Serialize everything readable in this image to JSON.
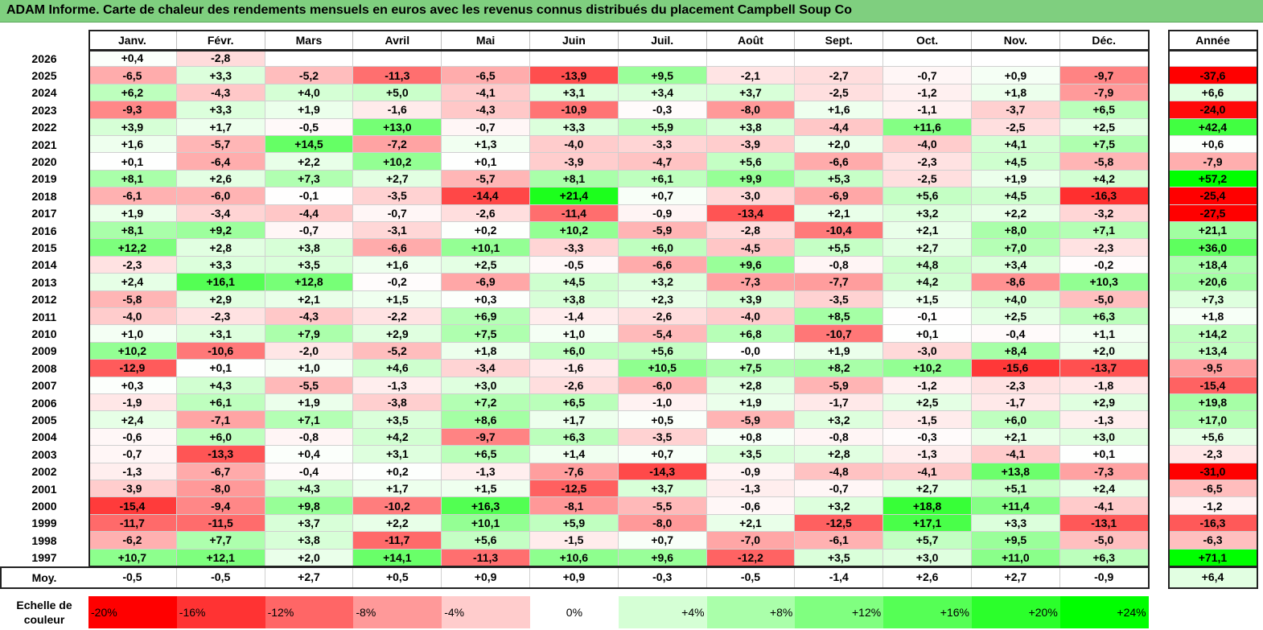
{
  "title": "ADAM Informe. Carte de chaleur des rendements mensuels en euros avec les revenus connus distribués du placement Campbell Soup Co",
  "chart_data": {
    "type": "heatmap",
    "title": "ADAM Informe. Carte de chaleur des rendements mensuels en euros avec les revenus connus distribués du placement Campbell Soup Co",
    "columns": [
      "Janv.",
      "Févr.",
      "Mars",
      "Avril",
      "Mai",
      "Juin",
      "Juil.",
      "Août",
      "Sept.",
      "Oct.",
      "Nov.",
      "Déc."
    ],
    "year_column": "Année",
    "rows": [
      {
        "year": "2026",
        "values": [
          "+0,4",
          "-2,8",
          "",
          "",
          "",
          "",
          "",
          "",
          "",
          "",
          "",
          ""
        ],
        "annual": ""
      },
      {
        "year": "2025",
        "values": [
          "-6,5",
          "+3,3",
          "-5,2",
          "-11,3",
          "-6,5",
          "-13,9",
          "+9,5",
          "-2,1",
          "-2,7",
          "-0,7",
          "+0,9",
          "-9,7"
        ],
        "annual": "-37,6"
      },
      {
        "year": "2024",
        "values": [
          "+6,2",
          "-4,3",
          "+4,0",
          "+5,0",
          "-4,1",
          "+3,1",
          "+3,4",
          "+3,7",
          "-2,5",
          "-1,2",
          "+1,8",
          "-7,9"
        ],
        "annual": "+6,6"
      },
      {
        "year": "2023",
        "values": [
          "-9,3",
          "+3,3",
          "+1,9",
          "-1,6",
          "-4,3",
          "-10,9",
          "-0,3",
          "-8,0",
          "+1,6",
          "-1,1",
          "-3,7",
          "+6,5"
        ],
        "annual": "-24,0"
      },
      {
        "year": "2022",
        "values": [
          "+3,9",
          "+1,7",
          "-0,5",
          "+13,0",
          "-0,7",
          "+3,3",
          "+5,9",
          "+3,8",
          "-4,4",
          "+11,6",
          "-2,5",
          "+2,5"
        ],
        "annual": "+42,4"
      },
      {
        "year": "2021",
        "values": [
          "+1,6",
          "-5,7",
          "+14,5",
          "-7,2",
          "+1,3",
          "-4,0",
          "-3,3",
          "-3,9",
          "+2,0",
          "-4,0",
          "+4,1",
          "+7,5"
        ],
        "annual": "+0,6"
      },
      {
        "year": "2020",
        "values": [
          "+0,1",
          "-6,4",
          "+2,2",
          "+10,2",
          "+0,1",
          "-3,9",
          "-4,7",
          "+5,6",
          "-6,6",
          "-2,3",
          "+4,5",
          "-5,8"
        ],
        "annual": "-7,9"
      },
      {
        "year": "2019",
        "values": [
          "+8,1",
          "+2,6",
          "+7,3",
          "+2,7",
          "-5,7",
          "+8,1",
          "+6,1",
          "+9,9",
          "+5,3",
          "-2,5",
          "+1,9",
          "+4,2"
        ],
        "annual": "+57,2"
      },
      {
        "year": "2018",
        "values": [
          "-6,1",
          "-6,0",
          "-0,1",
          "-3,5",
          "-14,4",
          "+21,4",
          "+0,7",
          "-3,0",
          "-6,9",
          "+5,6",
          "+4,5",
          "-16,3"
        ],
        "annual": "-25,4"
      },
      {
        "year": "2017",
        "values": [
          "+1,9",
          "-3,4",
          "-4,4",
          "-0,7",
          "-2,6",
          "-11,4",
          "-0,9",
          "-13,4",
          "+2,1",
          "+3,2",
          "+2,2",
          "-3,2"
        ],
        "annual": "-27,5"
      },
      {
        "year": "2016",
        "values": [
          "+8,1",
          "+9,2",
          "-0,7",
          "-3,1",
          "+0,2",
          "+10,2",
          "-5,9",
          "-2,8",
          "-10,4",
          "+2,1",
          "+8,0",
          "+7,1"
        ],
        "annual": "+21,1"
      },
      {
        "year": "2015",
        "values": [
          "+12,2",
          "+2,8",
          "+3,8",
          "-6,6",
          "+10,1",
          "-3,3",
          "+6,0",
          "-4,5",
          "+5,5",
          "+2,7",
          "+7,0",
          "-2,3"
        ],
        "annual": "+36,0"
      },
      {
        "year": "2014",
        "values": [
          "-2,3",
          "+3,3",
          "+3,5",
          "+1,6",
          "+2,5",
          "-0,5",
          "-6,6",
          "+9,6",
          "-0,8",
          "+4,8",
          "+3,4",
          "-0,2"
        ],
        "annual": "+18,4"
      },
      {
        "year": "2013",
        "values": [
          "+2,4",
          "+16,1",
          "+12,8",
          "-0,2",
          "-6,9",
          "+4,5",
          "+3,2",
          "-7,3",
          "-7,7",
          "+4,2",
          "-8,6",
          "+10,3"
        ],
        "annual": "+20,6"
      },
      {
        "year": "2012",
        "values": [
          "-5,8",
          "+2,9",
          "+2,1",
          "+1,5",
          "+0,3",
          "+3,8",
          "+2,3",
          "+3,9",
          "-3,5",
          "+1,5",
          "+4,0",
          "-5,0"
        ],
        "annual": "+7,3"
      },
      {
        "year": "2011",
        "values": [
          "-4,0",
          "-2,3",
          "-4,3",
          "-2,2",
          "+6,9",
          "-1,4",
          "-2,6",
          "-4,0",
          "+8,5",
          "-0,1",
          "+2,5",
          "+6,3"
        ],
        "annual": "+1,8"
      },
      {
        "year": "2010",
        "values": [
          "+1,0",
          "+3,1",
          "+7,9",
          "+2,9",
          "+7,5",
          "+1,0",
          "-5,4",
          "+6,8",
          "-10,7",
          "+0,1",
          "-0,4",
          "+1,1"
        ],
        "annual": "+14,2"
      },
      {
        "year": "2009",
        "values": [
          "+10,2",
          "-10,6",
          "-2,0",
          "-5,2",
          "+1,8",
          "+6,0",
          "+5,6",
          "-0,0",
          "+1,9",
          "-3,0",
          "+8,4",
          "+2,0"
        ],
        "annual": "+13,4"
      },
      {
        "year": "2008",
        "values": [
          "-12,9",
          "+0,1",
          "+1,0",
          "+4,6",
          "-3,4",
          "-1,6",
          "+10,5",
          "+7,5",
          "+8,2",
          "+10,2",
          "-15,6",
          "-13,7"
        ],
        "annual": "-9,5"
      },
      {
        "year": "2007",
        "values": [
          "+0,3",
          "+4,3",
          "-5,5",
          "-1,3",
          "+3,0",
          "-2,6",
          "-6,0",
          "+2,8",
          "-5,9",
          "-1,2",
          "-2,3",
          "-1,8"
        ],
        "annual": "-15,4"
      },
      {
        "year": "2006",
        "values": [
          "-1,9",
          "+6,1",
          "+1,9",
          "-3,8",
          "+7,2",
          "+6,5",
          "-1,0",
          "+1,9",
          "-1,7",
          "+2,5",
          "-1,7",
          "+2,9"
        ],
        "annual": "+19,8"
      },
      {
        "year": "2005",
        "values": [
          "+2,4",
          "-7,1",
          "+7,1",
          "+3,5",
          "+8,6",
          "+1,7",
          "+0,5",
          "-5,9",
          "+3,2",
          "-1,5",
          "+6,0",
          "-1,3"
        ],
        "annual": "+17,0"
      },
      {
        "year": "2004",
        "values": [
          "-0,6",
          "+6,0",
          "-0,8",
          "+4,2",
          "-9,7",
          "+6,3",
          "-3,5",
          "+0,8",
          "-0,8",
          "-0,3",
          "+2,1",
          "+3,0"
        ],
        "annual": "+5,6"
      },
      {
        "year": "2003",
        "values": [
          "-0,7",
          "-13,3",
          "+0,4",
          "+3,1",
          "+6,5",
          "+1,4",
          "+0,7",
          "+3,5",
          "+2,8",
          "-1,3",
          "-4,1",
          "+0,1"
        ],
        "annual": "-2,3"
      },
      {
        "year": "2002",
        "values": [
          "-1,3",
          "-6,7",
          "-0,4",
          "+0,2",
          "-1,3",
          "-7,6",
          "-14,3",
          "-0,9",
          "-4,8",
          "-4,1",
          "+13,8",
          "-7,3"
        ],
        "annual": "-31,0"
      },
      {
        "year": "2001",
        "values": [
          "-3,9",
          "-8,0",
          "+4,3",
          "+1,7",
          "+1,5",
          "-12,5",
          "+3,7",
          "-1,3",
          "-0,7",
          "+2,7",
          "+5,1",
          "+2,4"
        ],
        "annual": "-6,5"
      },
      {
        "year": "2000",
        "values": [
          "-15,4",
          "-9,4",
          "+9,8",
          "-10,2",
          "+16,3",
          "-8,1",
          "-5,5",
          "-0,6",
          "+3,2",
          "+18,8",
          "+11,4",
          "-4,1"
        ],
        "annual": "-1,2"
      },
      {
        "year": "1999",
        "values": [
          "-11,7",
          "-11,5",
          "+3,7",
          "+2,2",
          "+10,1",
          "+5,9",
          "-8,0",
          "+2,1",
          "-12,5",
          "+17,1",
          "+3,3",
          "-13,1"
        ],
        "annual": "-16,3"
      },
      {
        "year": "1998",
        "values": [
          "-6,2",
          "+7,7",
          "+3,8",
          "-11,7",
          "+5,6",
          "-1,5",
          "+0,7",
          "-7,0",
          "-6,1",
          "+5,7",
          "+9,5",
          "-5,0"
        ],
        "annual": "-6,3"
      },
      {
        "year": "1997",
        "values": [
          "+10,7",
          "+12,1",
          "+2,0",
          "+14,1",
          "-11,3",
          "+10,6",
          "+9,6",
          "-12,2",
          "+3,5",
          "+3,0",
          "+11,0",
          "+6,3"
        ],
        "annual": "+71,1"
      }
    ],
    "average": {
      "label": "Moy.",
      "values": [
        "-0,5",
        "-0,5",
        "+2,7",
        "+0,5",
        "+0,9",
        "+0,9",
        "-0,3",
        "-0,5",
        "-1,4",
        "+2,6",
        "+2,7",
        "-0,9"
      ],
      "annual": "+6,4"
    },
    "scale": {
      "label_line1": "Echelle de",
      "label_line2": "couleur",
      "stops": [
        "-20%",
        "-16%",
        "-12%",
        "-8%",
        "-4%",
        "0%",
        "+4%",
        "+8%",
        "+12%",
        "+16%",
        "+20%",
        "+24%"
      ]
    },
    "colors": {
      "negative_max": "#ff0000",
      "neutral": "#ffffff",
      "positive_max": "#00ff00",
      "title_bg": "#7fcf7f"
    }
  }
}
